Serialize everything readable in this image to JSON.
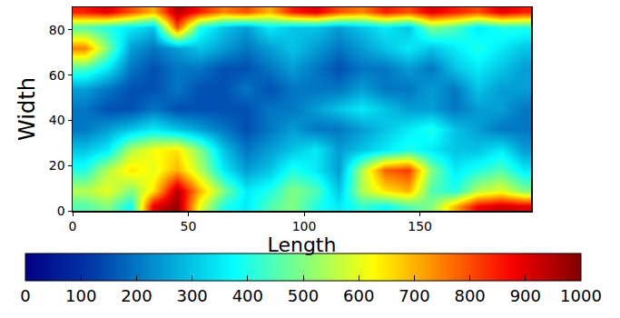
{
  "chart_data": {
    "type": "heatmap",
    "x_label": "Length",
    "y_label": "Width",
    "xlim": [
      0,
      198
    ],
    "ylim": [
      0,
      90
    ],
    "xticks": [
      0,
      50,
      100,
      150
    ],
    "yticks": [
      0,
      20,
      40,
      60,
      80
    ],
    "color": "Jet",
    "colorbar_range": [
      0,
      1000
    ],
    "colorbar_ticks": [
      0,
      100,
      200,
      300,
      400,
      500,
      600,
      700,
      800,
      900,
      1000
    ],
    "x": [
      5,
      15,
      25,
      35,
      45,
      55,
      65,
      75,
      85,
      95,
      105,
      115,
      125,
      135,
      145,
      155,
      165,
      175,
      185,
      195
    ],
    "y": [
      2,
      9,
      18,
      27,
      36,
      45,
      54,
      63,
      72,
      81,
      88
    ],
    "z": [
      [
        450,
        500,
        380,
        900,
        980,
        600,
        400,
        350,
        450,
        500,
        400,
        350,
        420,
        380,
        450,
        500,
        700,
        880,
        920,
        900
      ],
      [
        550,
        600,
        500,
        650,
        950,
        700,
        500,
        350,
        400,
        500,
        450,
        300,
        550,
        650,
        700,
        450,
        400,
        550,
        600,
        500
      ],
      [
        400,
        550,
        650,
        600,
        700,
        550,
        350,
        250,
        300,
        400,
        350,
        250,
        550,
        780,
        820,
        500,
        350,
        400,
        450,
        350
      ],
      [
        300,
        350,
        550,
        620,
        650,
        500,
        300,
        200,
        250,
        300,
        350,
        250,
        300,
        350,
        400,
        350,
        300,
        300,
        350,
        250
      ],
      [
        200,
        250,
        300,
        350,
        300,
        250,
        200,
        150,
        200,
        250,
        200,
        200,
        250,
        300,
        350,
        400,
        300,
        250,
        200,
        200
      ],
      [
        200,
        150,
        150,
        200,
        150,
        150,
        150,
        150,
        200,
        200,
        250,
        300,
        350,
        300,
        250,
        250,
        200,
        250,
        250,
        200
      ],
      [
        250,
        200,
        150,
        150,
        200,
        150,
        150,
        200,
        150,
        200,
        200,
        200,
        250,
        200,
        200,
        250,
        200,
        300,
        250,
        250
      ],
      [
        450,
        350,
        200,
        150,
        200,
        200,
        150,
        150,
        200,
        250,
        200,
        150,
        200,
        200,
        250,
        200,
        300,
        350,
        300,
        250
      ],
      [
        750,
        500,
        250,
        200,
        250,
        300,
        250,
        200,
        250,
        300,
        250,
        200,
        250,
        300,
        350,
        300,
        350,
        400,
        350,
        300
      ],
      [
        450,
        400,
        350,
        300,
        800,
        400,
        300,
        250,
        350,
        300,
        300,
        250,
        300,
        350,
        300,
        500,
        450,
        350,
        400,
        400
      ],
      [
        850,
        900,
        800,
        700,
        950,
        850,
        750,
        800,
        700,
        850,
        900,
        800,
        750,
        850,
        800,
        900,
        850,
        800,
        900,
        850
      ]
    ]
  }
}
